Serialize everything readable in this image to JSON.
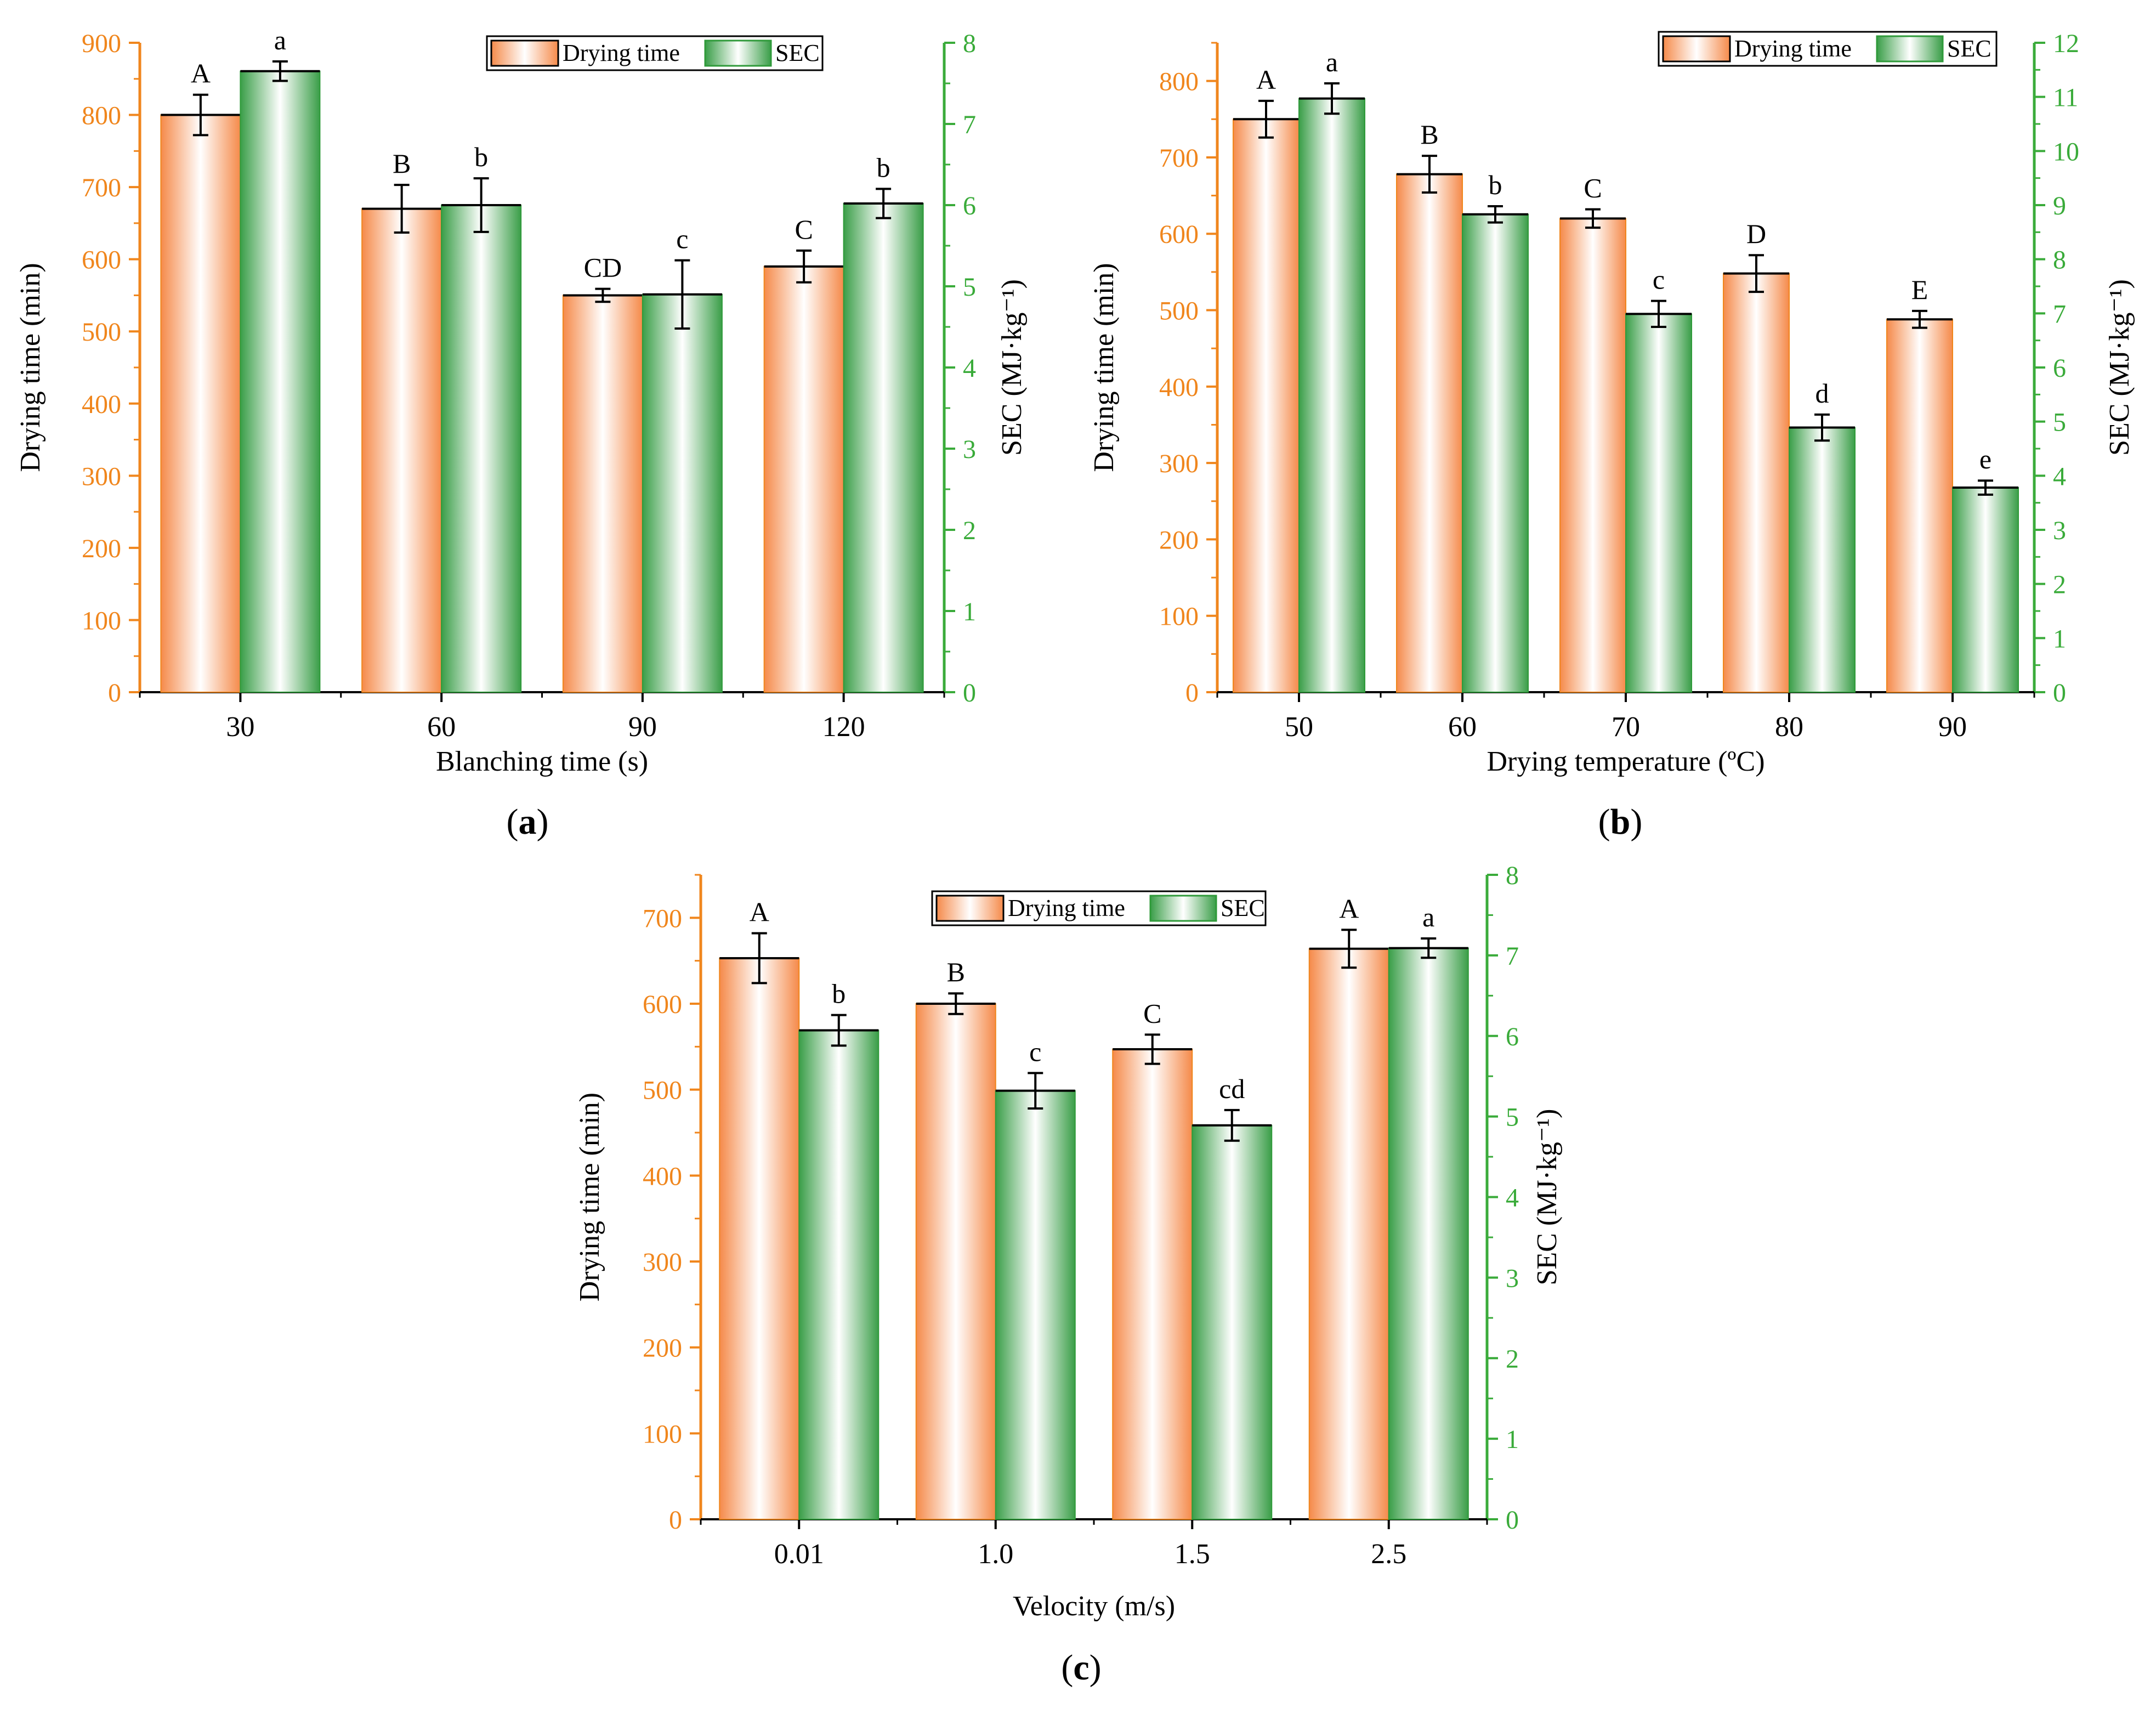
{
  "colors": {
    "left_axis": "#f0861d",
    "right_axis": "#3aab3a",
    "drying_bar_edge": "#f0861d",
    "sec_bar_edge": "#2f9a3a"
  },
  "chart_data": [
    {
      "type": "bar",
      "panel": "(a)",
      "panel_letter": "a",
      "categories": [
        "30",
        "60",
        "90",
        "120"
      ],
      "xlabel": "Blanching time (s)",
      "ylabel_left": "Drying time (min)",
      "ylabel_right": "SEC (MJ·kg⁻¹)",
      "ylim_left": [
        0,
        900
      ],
      "ylim_right": [
        0,
        8
      ],
      "yticks_left": [
        0,
        100,
        200,
        300,
        400,
        500,
        600,
        700,
        800,
        900
      ],
      "yticks_right": [
        0,
        1,
        2,
        3,
        4,
        5,
        6,
        7,
        8
      ],
      "legend": [
        "Drying time",
        "SEC"
      ],
      "series": [
        {
          "name": "Drying time",
          "axis": "left",
          "values": [
            800,
            670,
            550,
            590
          ],
          "errors": [
            28,
            33,
            9,
            22
          ],
          "labels": [
            "A",
            "B",
            "CD",
            "C"
          ]
        },
        {
          "name": "SEC",
          "axis": "right",
          "values": [
            7.65,
            6.0,
            4.9,
            6.02
          ],
          "errors": [
            0.12,
            0.33,
            0.42,
            0.18
          ],
          "labels": [
            "a",
            "b",
            "c",
            "b"
          ]
        }
      ]
    },
    {
      "type": "bar",
      "panel": "(b)",
      "panel_letter": "b",
      "categories": [
        "50",
        "60",
        "70",
        "80",
        "90"
      ],
      "xlabel": "Drying temperature (ºC)",
      "ylabel_left": "Drying time (min)",
      "ylabel_right": "SEC (MJ·kg⁻¹)",
      "ylim_left": [
        0,
        850
      ],
      "ylim_right": [
        0,
        12
      ],
      "yticks_left": [
        0,
        100,
        200,
        300,
        400,
        500,
        600,
        700,
        800
      ],
      "yticks_right": [
        0,
        1,
        2,
        3,
        4,
        5,
        6,
        7,
        8,
        9,
        10,
        11,
        12
      ],
      "legend": [
        "Drying time",
        "SEC"
      ],
      "series": [
        {
          "name": "Drying time",
          "axis": "left",
          "values": [
            750,
            678,
            620,
            548,
            488
          ],
          "errors": [
            24,
            24,
            12,
            24,
            11
          ],
          "labels": [
            "A",
            "B",
            "C",
            "D",
            "E"
          ]
        },
        {
          "name": "SEC",
          "axis": "right",
          "values": [
            10.97,
            8.83,
            6.99,
            4.89,
            3.78
          ],
          "errors": [
            0.28,
            0.15,
            0.24,
            0.24,
            0.13
          ],
          "labels": [
            "a",
            "b",
            "c",
            "d",
            "e"
          ]
        }
      ]
    },
    {
      "type": "bar",
      "panel": "(c)",
      "panel_letter": "c",
      "categories": [
        "0.01",
        "1.0",
        "1.5",
        "2.5"
      ],
      "xlabel": "Velocity (m/s)",
      "ylabel_left": "Drying time (min)",
      "ylabel_right": "SEC (MJ·kg⁻¹)",
      "ylim_left": [
        0,
        750
      ],
      "ylim_right": [
        0,
        8
      ],
      "yticks_left": [
        0,
        100,
        200,
        300,
        400,
        500,
        600,
        700
      ],
      "yticks_right": [
        0,
        1,
        2,
        3,
        4,
        5,
        6,
        7,
        8
      ],
      "legend": [
        "Drying time",
        "SEC"
      ],
      "series": [
        {
          "name": "Drying time",
          "axis": "left",
          "values": [
            653,
            600,
            547,
            664
          ],
          "errors": [
            29,
            12,
            17,
            22
          ],
          "labels": [
            "A",
            "B",
            "C",
            "A"
          ]
        },
        {
          "name": "SEC",
          "axis": "right",
          "values": [
            6.07,
            5.32,
            4.89,
            7.09
          ],
          "errors": [
            0.19,
            0.22,
            0.19,
            0.12
          ],
          "labels": [
            "b",
            "c",
            "cd",
            "a"
          ]
        }
      ]
    }
  ]
}
